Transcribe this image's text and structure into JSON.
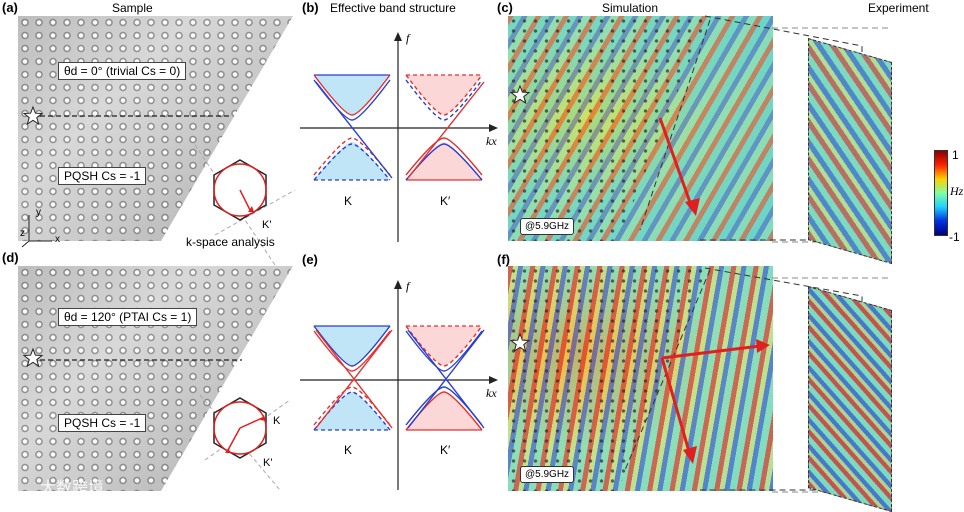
{
  "panels": {
    "a": {
      "label": "(a)"
    },
    "b": {
      "label": "(b)"
    },
    "c": {
      "label": "(c)"
    },
    "d": {
      "label": "(d)"
    },
    "e": {
      "label": "(e)"
    },
    "f": {
      "label": "(f)"
    }
  },
  "headers": {
    "sample": "Sample",
    "band": "Effective band structure",
    "simulation": "Simulation",
    "experiment": "Experiment"
  },
  "top_sample": {
    "angle_box_prefix": "θd = 0° (trivial ",
    "angle_box_cs": "Cs = 0)",
    "pqsh_prefix": "PQSH ",
    "pqsh_cs": "Cs = -1",
    "k_prime": "K'",
    "kspace": "k-space analysis",
    "axis_y": "y",
    "axis_z": "z",
    "axis_x": "x"
  },
  "bottom_sample": {
    "angle_box_prefix": "θd = 120° (PTAI ",
    "angle_box_cs": "Cs = 1)",
    "pqsh_prefix": "PQSH  ",
    "pqsh_cs": "Cs = -1",
    "k": "K",
    "k_prime": "K'"
  },
  "band": {
    "axis_f": "f",
    "axis_kx": "kx",
    "valley_k": "K",
    "valley_kprime": "K′"
  },
  "freq_tag": "@5.9GHz",
  "colorbar": {
    "max": "1",
    "min": "-1",
    "label": "Hz"
  },
  "watermark": "大数跨境",
  "colors": {
    "band_blue": "#2a3fd0",
    "band_red": "#e53030",
    "fill_blue": "#bfe5f6",
    "fill_pink": "#fbd7d7",
    "arrow": "#e02020"
  }
}
